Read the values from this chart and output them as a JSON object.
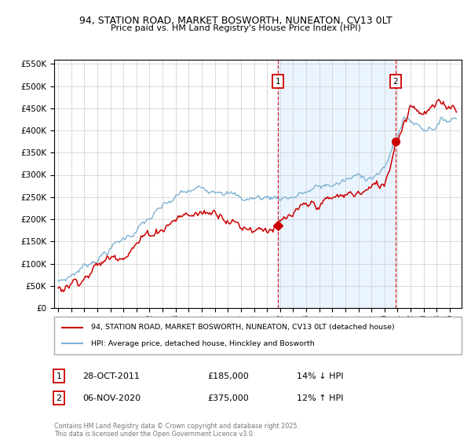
{
  "title": "94, STATION ROAD, MARKET BOSWORTH, NUNEATON, CV13 0LT",
  "subtitle": "Price paid vs. HM Land Registry's House Price Index (HPI)",
  "legend_entry1": "94, STATION ROAD, MARKET BOSWORTH, NUNEATON, CV13 0LT (detached house)",
  "legend_entry2": "HPI: Average price, detached house, Hinckley and Bosworth",
  "annotation1_label": "1",
  "annotation1_date": "28-OCT-2011",
  "annotation1_price": "£185,000",
  "annotation1_hpi": "14% ↓ HPI",
  "annotation1_year": 2011.83,
  "annotation1_value": 185000,
  "annotation2_label": "2",
  "annotation2_date": "06-NOV-2020",
  "annotation2_price": "£375,000",
  "annotation2_hpi": "12% ↑ HPI",
  "annotation2_year": 2020.85,
  "annotation2_value": 375000,
  "footer": "Contains HM Land Registry data © Crown copyright and database right 2025.\nThis data is licensed under the Open Government Licence v3.0.",
  "red_color": "#cc0000",
  "blue_color": "#7fb3d3",
  "shade_color": "#ddeeff",
  "vline_color": "#cc0000",
  "ylim_min": 0,
  "ylim_max": 560000,
  "ytick_step": 50000,
  "xlim_min": 1994.7,
  "xlim_max": 2025.9
}
